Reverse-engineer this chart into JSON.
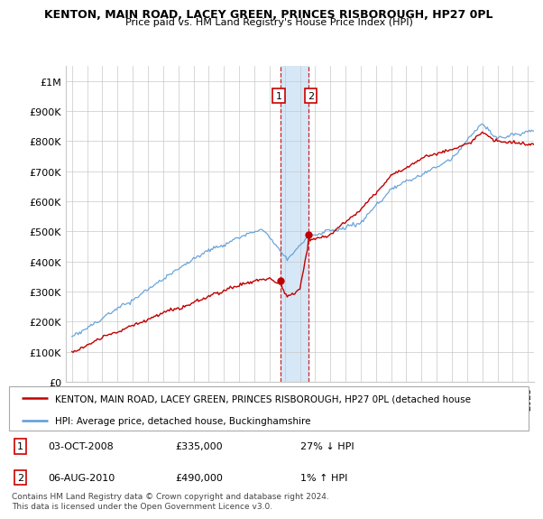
{
  "title": "KENTON, MAIN ROAD, LACEY GREEN, PRINCES RISBOROUGH, HP27 0PL",
  "subtitle": "Price paid vs. HM Land Registry's House Price Index (HPI)",
  "ylim": [
    0,
    1050000
  ],
  "yticks": [
    0,
    100000,
    200000,
    300000,
    400000,
    500000,
    600000,
    700000,
    800000,
    900000,
    1000000
  ],
  "ytick_labels": [
    "£0",
    "£100K",
    "£200K",
    "£300K",
    "£400K",
    "£500K",
    "£600K",
    "£700K",
    "£800K",
    "£900K",
    "£1M"
  ],
  "hpi_color": "#5b9bd5",
  "price_color": "#c00000",
  "annot_box_color": "#cc0000",
  "annot_line_color": "#cc0000",
  "highlight_color": "#d6e8f7",
  "grid_color": "#c8c8c8",
  "legend_line1": "KENTON, MAIN ROAD, LACEY GREEN, PRINCES RISBOROUGH, HP27 0PL (detached house",
  "legend_line2": "HPI: Average price, detached house, Buckinghamshire",
  "footnote": "Contains HM Land Registry data © Crown copyright and database right 2024.\nThis data is licensed under the Open Government Licence v3.0.",
  "pt1_x": 2008.75,
  "pt1_y": 335000,
  "pt1_label": "1",
  "pt1_date": "03-OCT-2008",
  "pt1_price": "£335,000",
  "pt1_hpi": "27% ↓ HPI",
  "pt2_x": 2010.58,
  "pt2_y": 490000,
  "pt2_label": "2",
  "pt2_date": "06-AUG-2010",
  "pt2_price": "£490,000",
  "pt2_hpi": "1% ↑ HPI",
  "highlight_x_start": 2008.75,
  "highlight_x_end": 2010.58,
  "xmin": 1994.6,
  "xmax": 2025.4
}
